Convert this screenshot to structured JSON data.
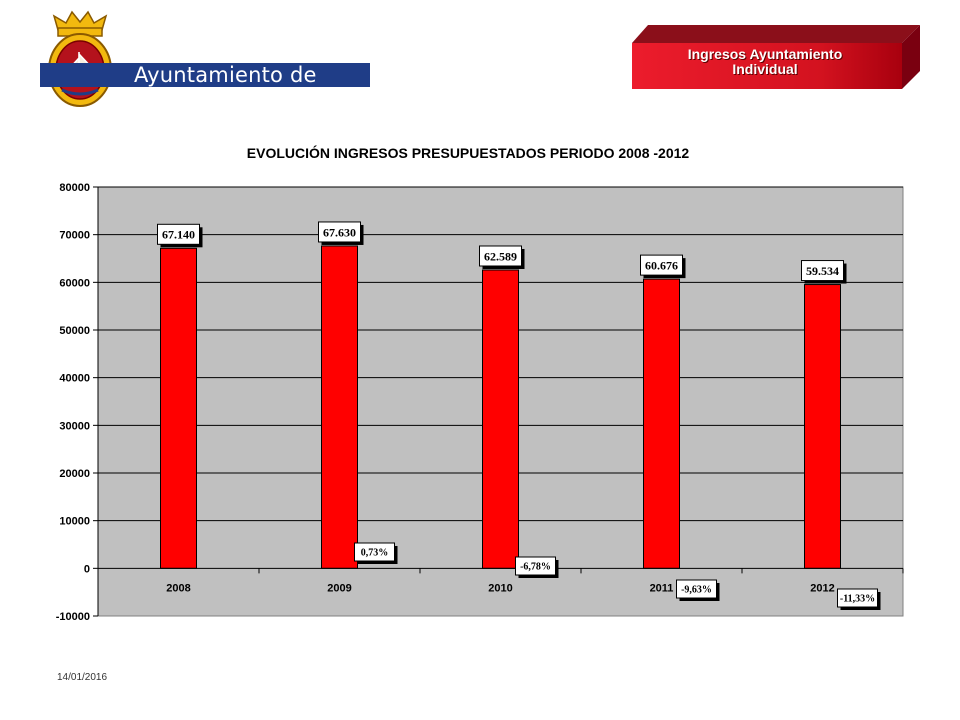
{
  "header": {
    "org_name": "Ayuntamiento de Avilés",
    "logo_icon": "coat-of-arms-icon",
    "banner_line1": "Ingresos Ayuntamiento",
    "banner_line2": "Individual",
    "banner_color": "#c8102e"
  },
  "footer": {
    "date": "14/01/2016"
  },
  "chart_data": {
    "type": "bar",
    "title": "EVOLUCIÓN INGRESOS PRESUPUESTADOS PERIODO 2008 -2012",
    "categories": [
      "2008",
      "2009",
      "2010",
      "2011",
      "2012"
    ],
    "values": [
      67140,
      67630,
      62589,
      60676,
      59534
    ],
    "value_labels": [
      "67.140",
      "67.630",
      "62.589",
      "60.676",
      "59.534"
    ],
    "change_labels": [
      "",
      "0,73%",
      "-6,78%",
      "-9,63%",
      "-11,33%"
    ],
    "ylim": [
      -10000,
      80000
    ],
    "yticks": [
      "80000",
      "70000",
      "60000",
      "50000",
      "40000",
      "30000",
      "20000",
      "10000",
      "0",
      "-10000"
    ],
    "xlabel": "",
    "ylabel": "",
    "grid": true,
    "legend": "none",
    "bar_color": "#ff0000",
    "plot_background": "#c0c0c0"
  }
}
